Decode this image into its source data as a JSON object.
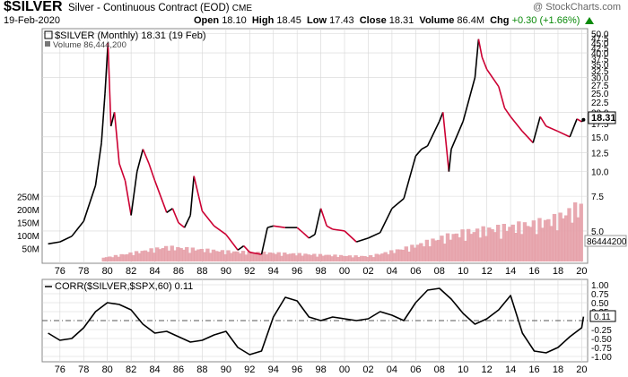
{
  "header": {
    "symbol": "$SILVER",
    "contract": "Silver - Continuous Contract (EOD)",
    "exchange": "CME",
    "watermark": "@ StockCharts.com",
    "date": "19-Feb-2020",
    "open_label": "Open",
    "open": "18.10",
    "high_label": "High",
    "high": "18.45",
    "low_label": "Low",
    "low": "17.43",
    "close_label": "Close",
    "close": "18.31",
    "volume_label": "Volume",
    "volume": "86.4M",
    "chg_label": "Chg",
    "chg": "+0.30 (+1.66%)",
    "chg_color": "#0a8a0a"
  },
  "main_legend": {
    "price": "$SILVER (Monthly) 18.31 (19 Feb)",
    "volume": "Volume 86,444,200"
  },
  "price_tag": "18.31",
  "volume_tag": "86444200",
  "indicator_legend": "CORR($SILVER,$SPX,60) 0.11",
  "corr_tag": "0.11",
  "colors": {
    "up": "#000000",
    "down": "#cc0033",
    "volume": "#e5a0a8",
    "grid": "#d6d6d6"
  },
  "chart_data": [
    {
      "type": "line",
      "title": "$SILVER (Monthly)",
      "y_scale": "log",
      "ylim": [
        3.5,
        52
      ],
      "y_ticks": [
        "5.0",
        "7.5",
        "10.0",
        "12.5",
        "15.0",
        "17.5",
        "20.0",
        "22.5",
        "25.0",
        "27.5",
        "30.0",
        "32.5",
        "35.0",
        "37.5",
        "40.0",
        "42.5",
        "45.0",
        "47.5",
        "50.0"
      ],
      "x_ticks": [
        "76",
        "78",
        "80",
        "82",
        "84",
        "86",
        "88",
        "90",
        "92",
        "94",
        "96",
        "98",
        "00",
        "02",
        "04",
        "06",
        "08",
        "10",
        "12",
        "14",
        "16",
        "18",
        "20"
      ],
      "x": [
        1975.0,
        1976.0,
        1977.0,
        1978.0,
        1979.0,
        1979.5,
        1979.8,
        1980.05,
        1980.3,
        1980.6,
        1981.0,
        1981.5,
        1982.0,
        1982.5,
        1983.0,
        1983.5,
        1984.0,
        1985.0,
        1985.5,
        1986.0,
        1986.5,
        1987.0,
        1987.3,
        1987.7,
        1988.0,
        1989.0,
        1990.0,
        1991.0,
        1991.5,
        1992.0,
        1993.0,
        1993.5,
        1994.0,
        1995.0,
        1996.0,
        1996.5,
        1997.0,
        1997.5,
        1998.0,
        1998.5,
        1999.0,
        2000.0,
        2001.0,
        2002.0,
        2003.0,
        2004.0,
        2005.0,
        2006.0,
        2006.5,
        2007.0,
        2008.0,
        2008.3,
        2008.8,
        2009.0,
        2010.0,
        2011.0,
        2011.3,
        2011.6,
        2012.0,
        2013.0,
        2013.5,
        2014.0,
        2015.0,
        2015.9,
        2016.5,
        2017.0,
        2018.0,
        2019.0,
        2019.6,
        2020.0,
        2020.15
      ],
      "values": [
        4.3,
        4.4,
        4.7,
        5.6,
        8.5,
        14.0,
        25.0,
        45.0,
        17.0,
        20.0,
        11.0,
        9.0,
        6.0,
        10.0,
        13.0,
        11.0,
        9.0,
        6.2,
        6.5,
        5.5,
        5.2,
        6.0,
        9.5,
        7.5,
        6.3,
        5.3,
        4.8,
        4.0,
        4.2,
        3.9,
        3.8,
        5.2,
        5.3,
        5.2,
        5.2,
        4.9,
        4.6,
        4.8,
        6.5,
        5.3,
        5.1,
        5.0,
        4.4,
        4.6,
        4.9,
        6.5,
        7.3,
        12.0,
        13.0,
        13.5,
        18.0,
        20.0,
        10.0,
        13.0,
        18.0,
        30.0,
        47.0,
        38.0,
        33.0,
        27.0,
        21.0,
        19.0,
        16.0,
        14.0,
        19.0,
        17.0,
        16.0,
        15.0,
        18.5,
        17.9,
        18.31
      ]
    },
    {
      "type": "bar",
      "title": "Volume",
      "y_ticks": [
        "50M",
        "100M",
        "150M",
        "200M",
        "250M"
      ],
      "ylim": [
        0,
        300
      ],
      "x": [
        1980,
        1985,
        1990,
        1995,
        2000,
        2002,
        2004,
        2006,
        2008,
        2010,
        2012,
        2014,
        2016,
        2018,
        2019.8
      ],
      "values": [
        15,
        50,
        35,
        28,
        20,
        18,
        35,
        55,
        80,
        100,
        110,
        120,
        130,
        150,
        190
      ]
    },
    {
      "type": "line",
      "title": "CORR($SILVER,$SPX,60)",
      "ylim": [
        -1.0,
        1.0
      ],
      "y_ticks": [
        "1.00",
        "0.75",
        "0.50",
        "0.25",
        "-0.25",
        "-0.50",
        "-0.75",
        "-1.00"
      ],
      "x_ticks": [
        "76",
        "78",
        "80",
        "82",
        "84",
        "86",
        "88",
        "90",
        "92",
        "94",
        "96",
        "98",
        "00",
        "02",
        "04",
        "06",
        "08",
        "10",
        "12",
        "14",
        "16",
        "18",
        "20"
      ],
      "x": [
        1975.0,
        1976.0,
        1977.0,
        1978.0,
        1979.0,
        1980.0,
        1981.0,
        1982.0,
        1983.0,
        1984.0,
        1985.0,
        1986.0,
        1987.0,
        1988.0,
        1989.0,
        1990.0,
        1991.0,
        1992.0,
        1993.0,
        1994.0,
        1995.0,
        1996.0,
        1997.0,
        1998.0,
        1999.0,
        2000.0,
        2001.0,
        2002.0,
        2003.0,
        2004.0,
        2005.0,
        2006.0,
        2007.0,
        2008.0,
        2009.0,
        2010.0,
        2011.0,
        2012.0,
        2013.0,
        2014.0,
        2015.0,
        2016.0,
        2017.0,
        2018.0,
        2019.0,
        2020.0,
        2020.15
      ],
      "values": [
        -0.35,
        -0.55,
        -0.5,
        -0.2,
        0.25,
        0.5,
        0.45,
        0.3,
        -0.1,
        -0.35,
        -0.3,
        -0.45,
        -0.6,
        -0.55,
        -0.4,
        -0.3,
        -0.75,
        -0.95,
        -0.85,
        0.1,
        0.65,
        0.55,
        0.1,
        0.0,
        0.1,
        0.05,
        0.0,
        0.05,
        0.25,
        0.15,
        0.0,
        0.5,
        0.85,
        0.9,
        0.6,
        0.2,
        -0.1,
        0.05,
        0.3,
        0.7,
        -0.35,
        -0.85,
        -0.9,
        -0.75,
        -0.45,
        -0.2,
        0.11
      ]
    }
  ]
}
